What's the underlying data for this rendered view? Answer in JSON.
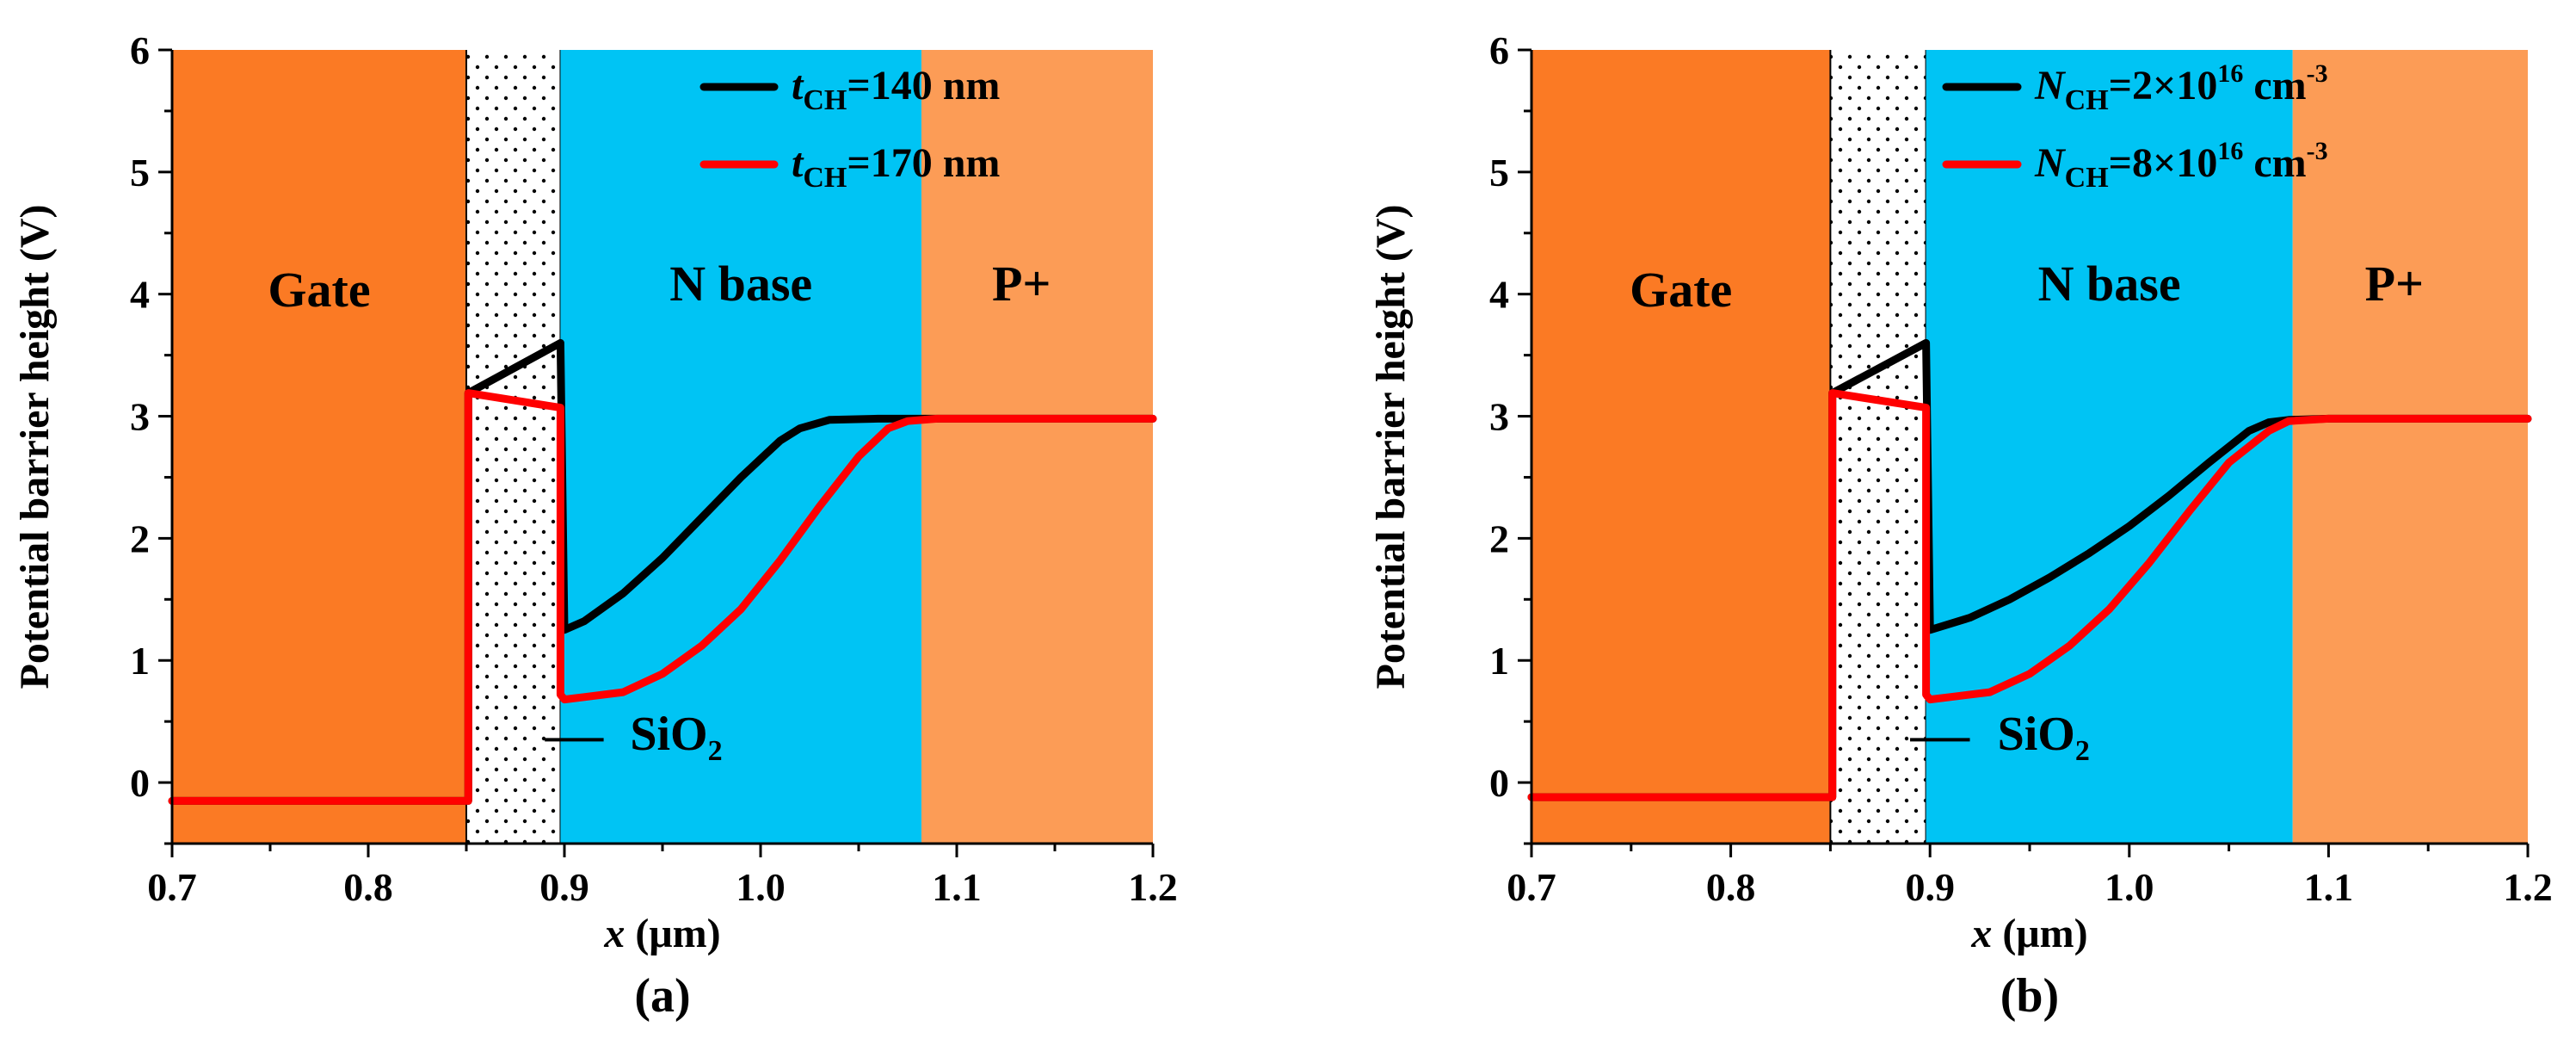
{
  "colors": {
    "gate": "#fb7a24",
    "oxide": "#ffffff",
    "nbase": "#00c4f4",
    "pplus": "#fc9c56",
    "series_black": "#000000",
    "series_red": "#ff0000",
    "axis": "#000000"
  },
  "chart_data": [
    {
      "type": "line",
      "panel_label": "(a)",
      "xlabel_var": "x",
      "xlabel_unit": " (μm)",
      "ylabel": "Potential barrier height (V)",
      "xlim": [
        0.7,
        1.2
      ],
      "ylim": [
        -0.5,
        6
      ],
      "xticks": [
        0.7,
        0.8,
        0.9,
        1.0,
        1.1,
        1.2
      ],
      "xtick_labels": [
        "0.7",
        "0.8",
        "0.9",
        "1.0",
        "1.1",
        "1.2"
      ],
      "yticks": [
        0,
        1,
        2,
        3,
        4,
        5,
        6
      ],
      "ytick_labels": [
        "0",
        "1",
        "2",
        "3",
        "4",
        "5",
        "6"
      ],
      "regions": [
        {
          "name": "Gate",
          "label": "Gate",
          "x0": 0.7,
          "x1": 0.85,
          "fill": "gate",
          "label_x": 0.775,
          "label_y": 3.9
        },
        {
          "name": "SiO2",
          "label": "",
          "x0": 0.85,
          "x1": 0.898,
          "fill": "oxide",
          "label_x": 0,
          "label_y": 0
        },
        {
          "name": "N base",
          "label": "N base",
          "x0": 0.898,
          "x1": 1.082,
          "fill": "nbase",
          "label_x": 0.99,
          "label_y": 3.95
        },
        {
          "name": "P+",
          "label": "P+",
          "x0": 1.082,
          "x1": 1.2,
          "fill": "pplus",
          "label_x": 1.133,
          "label_y": 3.95
        }
      ],
      "annotation": {
        "base": "SiO",
        "sub": "2",
        "line_x0": 0.89,
        "line_x1": 0.92,
        "line_y": 0.35,
        "text_x": 0.957,
        "text_y": 0.27
      },
      "legend_position": "top-right",
      "series": [
        {
          "name": "t_CH=140 nm",
          "label_var": "t",
          "label_sub": "CH",
          "label_mid": "=140 nm",
          "label_sup": "",
          "label_tail": "",
          "color": "series_black",
          "x": [
            0.7,
            0.851,
            0.851,
            0.898,
            0.898,
            0.9,
            0.91,
            0.93,
            0.95,
            0.97,
            0.99,
            1.01,
            1.02,
            1.035,
            1.06,
            1.08,
            1.1,
            1.2
          ],
          "y": [
            -0.15,
            -0.15,
            3.19,
            3.6,
            3.6,
            1.25,
            1.32,
            1.55,
            1.84,
            2.17,
            2.5,
            2.8,
            2.9,
            2.97,
            2.98,
            2.98,
            2.98,
            2.98
          ]
        },
        {
          "name": "t_CH=170 nm",
          "label_var": "t",
          "label_sub": "CH",
          "label_mid": "=170 nm",
          "label_sup": "",
          "label_tail": "",
          "color": "series_red",
          "x": [
            0.7,
            0.851,
            0.851,
            0.898,
            0.898,
            0.9,
            0.91,
            0.93,
            0.95,
            0.97,
            0.99,
            1.01,
            1.03,
            1.05,
            1.065,
            1.075,
            1.09,
            1.2
          ],
          "y": [
            -0.15,
            -0.15,
            3.19,
            3.07,
            0.72,
            0.68,
            0.7,
            0.74,
            0.89,
            1.12,
            1.42,
            1.82,
            2.26,
            2.67,
            2.9,
            2.96,
            2.98,
            2.98
          ]
        }
      ]
    },
    {
      "type": "line",
      "panel_label": "(b)",
      "xlabel_var": "x",
      "xlabel_unit": " (μm)",
      "ylabel": "Potential barrier height (V)",
      "xlim": [
        0.7,
        1.2
      ],
      "ylim": [
        -0.5,
        6
      ],
      "xticks": [
        0.7,
        0.8,
        0.9,
        1.0,
        1.1,
        1.2
      ],
      "xtick_labels": [
        "0.7",
        "0.8",
        "0.9",
        "1.0",
        "1.1",
        "1.2"
      ],
      "yticks": [
        0,
        1,
        2,
        3,
        4,
        5,
        6
      ],
      "ytick_labels": [
        "0",
        "1",
        "2",
        "3",
        "4",
        "5",
        "6"
      ],
      "regions": [
        {
          "name": "Gate",
          "label": "Gate",
          "x0": 0.7,
          "x1": 0.85,
          "fill": "gate",
          "label_x": 0.775,
          "label_y": 3.9
        },
        {
          "name": "SiO2",
          "label": "",
          "x0": 0.85,
          "x1": 0.898,
          "fill": "oxide",
          "label_x": 0,
          "label_y": 0
        },
        {
          "name": "N base",
          "label": "N base",
          "x0": 0.898,
          "x1": 1.082,
          "fill": "nbase",
          "label_x": 0.99,
          "label_y": 3.95
        },
        {
          "name": "P+",
          "label": "P+",
          "x0": 1.082,
          "x1": 1.2,
          "fill": "pplus",
          "label_x": 1.133,
          "label_y": 3.95
        }
      ],
      "annotation": {
        "base": "SiO",
        "sub": "2",
        "line_x0": 0.89,
        "line_x1": 0.92,
        "line_y": 0.35,
        "text_x": 0.957,
        "text_y": 0.27
      },
      "legend_position": "top-right",
      "series": [
        {
          "name": "N_CH=2×10^16 cm^-3",
          "label_var": "N",
          "label_sub": "CH",
          "label_mid": "=2×10",
          "label_sup": "16",
          "label_tail": " cm",
          "label_sup2": "-3",
          "color": "series_black",
          "x": [
            0.7,
            0.851,
            0.851,
            0.898,
            0.898,
            0.9,
            0.92,
            0.94,
            0.96,
            0.98,
            1.0,
            1.02,
            1.04,
            1.06,
            1.07,
            1.08,
            1.1,
            1.2
          ],
          "y": [
            -0.12,
            -0.12,
            3.19,
            3.6,
            3.6,
            1.25,
            1.35,
            1.5,
            1.68,
            1.88,
            2.1,
            2.35,
            2.62,
            2.88,
            2.95,
            2.97,
            2.98,
            2.98
          ]
        },
        {
          "name": "N_CH=8×10^16 cm^-3",
          "label_var": "N",
          "label_sub": "CH",
          "label_mid": "=8×10",
          "label_sup": "16",
          "label_tail": " cm",
          "label_sup2": "-3",
          "color": "series_red",
          "x": [
            0.7,
            0.851,
            0.851,
            0.898,
            0.898,
            0.9,
            0.91,
            0.93,
            0.95,
            0.97,
            0.99,
            1.01,
            1.03,
            1.05,
            1.07,
            1.08,
            1.1,
            1.2
          ],
          "y": [
            -0.12,
            -0.12,
            3.19,
            3.07,
            0.72,
            0.68,
            0.7,
            0.74,
            0.89,
            1.12,
            1.42,
            1.8,
            2.22,
            2.62,
            2.88,
            2.96,
            2.98,
            2.98
          ]
        }
      ]
    }
  ]
}
